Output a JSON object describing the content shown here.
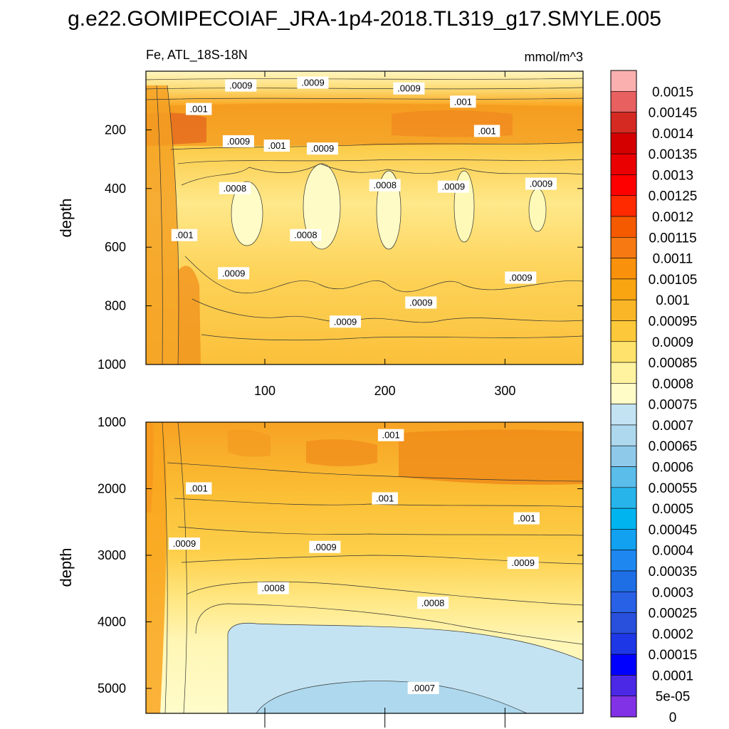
{
  "figure": {
    "title": "g.e22.GOMIPECOIAF_JRA-1p4-2018.TL319_g17.SMYLE.005"
  },
  "colors": {
    "lightest_yellow": "#fffdc8",
    "light_yellow": "#fff7b0",
    "mid_yellow": "#ffe36a",
    "gold": "#fdc93a",
    "orange": "#f9a51e",
    "dark_orange": "#f08f1b",
    "red_orange": "#e4611e",
    "light_blue": "#bfe2f1"
  },
  "chart_data": [
    {
      "type": "heatmap",
      "variable": "Fe",
      "region": "ATL_18S-18N",
      "units": "mmol/m^3",
      "ylabel": "depth",
      "xlabel": "",
      "xlim": [
        1,
        365
      ],
      "ylim": [
        1000,
        0
      ],
      "xticks": [
        100,
        200,
        300
      ],
      "yticks": [
        200,
        400,
        600,
        800,
        1000
      ],
      "contour_labels": [
        {
          "text": ".0009",
          "x": 80,
          "y": 50
        },
        {
          "text": ".0009",
          "x": 140,
          "y": 40
        },
        {
          "text": ".0009",
          "x": 220,
          "y": 60
        },
        {
          "text": ".001",
          "x": 45,
          "y": 130
        },
        {
          "text": ".001",
          "x": 265,
          "y": 105
        },
        {
          "text": ".0009",
          "x": 78,
          "y": 240
        },
        {
          "text": ".001",
          "x": 110,
          "y": 255
        },
        {
          "text": ".0009",
          "x": 148,
          "y": 265
        },
        {
          "text": ".001",
          "x": 285,
          "y": 205
        },
        {
          "text": ".0008",
          "x": 75,
          "y": 400
        },
        {
          "text": ".0008",
          "x": 200,
          "y": 390
        },
        {
          "text": ".0009",
          "x": 257,
          "y": 395
        },
        {
          "text": ".0009",
          "x": 330,
          "y": 385
        },
        {
          "text": ".001",
          "x": 33,
          "y": 560
        },
        {
          "text": ".0008",
          "x": 134,
          "y": 560
        },
        {
          "text": ".0009",
          "x": 74,
          "y": 690
        },
        {
          "text": ".0009",
          "x": 230,
          "y": 790
        },
        {
          "text": ".0009",
          "x": 313,
          "y": 705
        },
        {
          "text": ".0009",
          "x": 167,
          "y": 855
        }
      ]
    },
    {
      "type": "heatmap",
      "variable": "Fe",
      "ylabel": "depth",
      "xlabel": "",
      "xlim": [
        1,
        365
      ],
      "ylim": [
        5375,
        1000
      ],
      "yticks": [
        1000,
        2000,
        3000,
        4000,
        5000
      ],
      "contour_labels": [
        {
          "text": ".001",
          "x": 205,
          "y": 1200
        },
        {
          "text": ".001",
          "x": 45,
          "y": 2000
        },
        {
          "text": ".001",
          "x": 200,
          "y": 2150
        },
        {
          "text": ".001",
          "x": 318,
          "y": 2450
        },
        {
          "text": ".0009",
          "x": 33,
          "y": 2830
        },
        {
          "text": ".0009",
          "x": 150,
          "y": 2880
        },
        {
          "text": ".0009",
          "x": 315,
          "y": 3120
        },
        {
          "text": ".0008",
          "x": 107,
          "y": 3500
        },
        {
          "text": ".0008",
          "x": 240,
          "y": 3720
        },
        {
          "text": ".0007",
          "x": 232,
          "y": 5000
        }
      ]
    }
  ],
  "colorbar": {
    "labels": [
      "0.0015",
      "0.00145",
      "0.0014",
      "0.00135",
      "0.0013",
      "0.00125",
      "0.0012",
      "0.00115",
      "0.0011",
      "0.00105",
      "0.001",
      "0.00095",
      "0.0009",
      "0.00085",
      "0.0008",
      "0.00075",
      "0.0007",
      "0.00065",
      "0.0006",
      "0.00055",
      "0.0005",
      "0.00045",
      "0.0004",
      "0.00035",
      "0.0003",
      "0.00025",
      "0.0002",
      "0.00015",
      "0.0001",
      "5e-05",
      "0"
    ],
    "colors": [
      "#fbb0b0",
      "#e86060",
      "#d42a22",
      "#d40000",
      "#ea0000",
      "#ff0000",
      "#ff2a00",
      "#f55a00",
      "#f67912",
      "#f9910c",
      "#f9a512",
      "#fbb627",
      "#fdc93a",
      "#fee26b",
      "#fff3a0",
      "#fffcc8",
      "#c3e3f3",
      "#add8ed",
      "#8fc9ea",
      "#5abdea",
      "#27b4ea",
      "#00b4f0",
      "#12a0f0",
      "#1e87f0",
      "#1e6ee6",
      "#2860e6",
      "#2850dc",
      "#1e37e6",
      "#0000ff",
      "#4b28e6",
      "#8232e6"
    ]
  }
}
